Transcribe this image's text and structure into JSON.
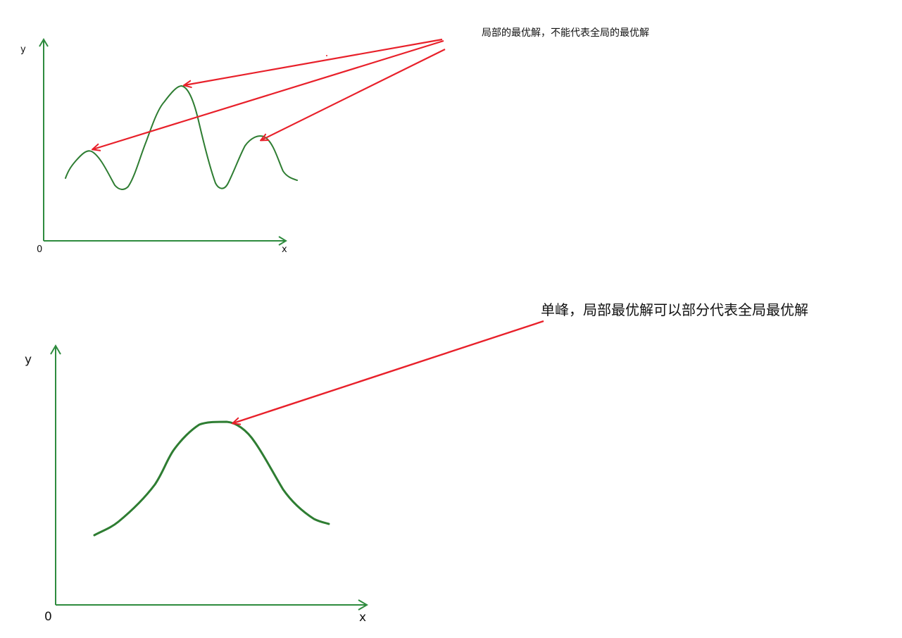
{
  "top_figure": {
    "annotation": "局部的最优解，不能代表全局的最优解",
    "y_label": "y",
    "x_label": "x",
    "origin_label": "0"
  },
  "bottom_figure": {
    "annotation": "单峰，局部最优解可以部分代表全局最优解",
    "y_label": "y",
    "x_label": "x",
    "origin_label": "0"
  },
  "colors": {
    "curve": "#2e7d32",
    "axis": "#2e8b3e",
    "arrow": "#e8202a"
  }
}
